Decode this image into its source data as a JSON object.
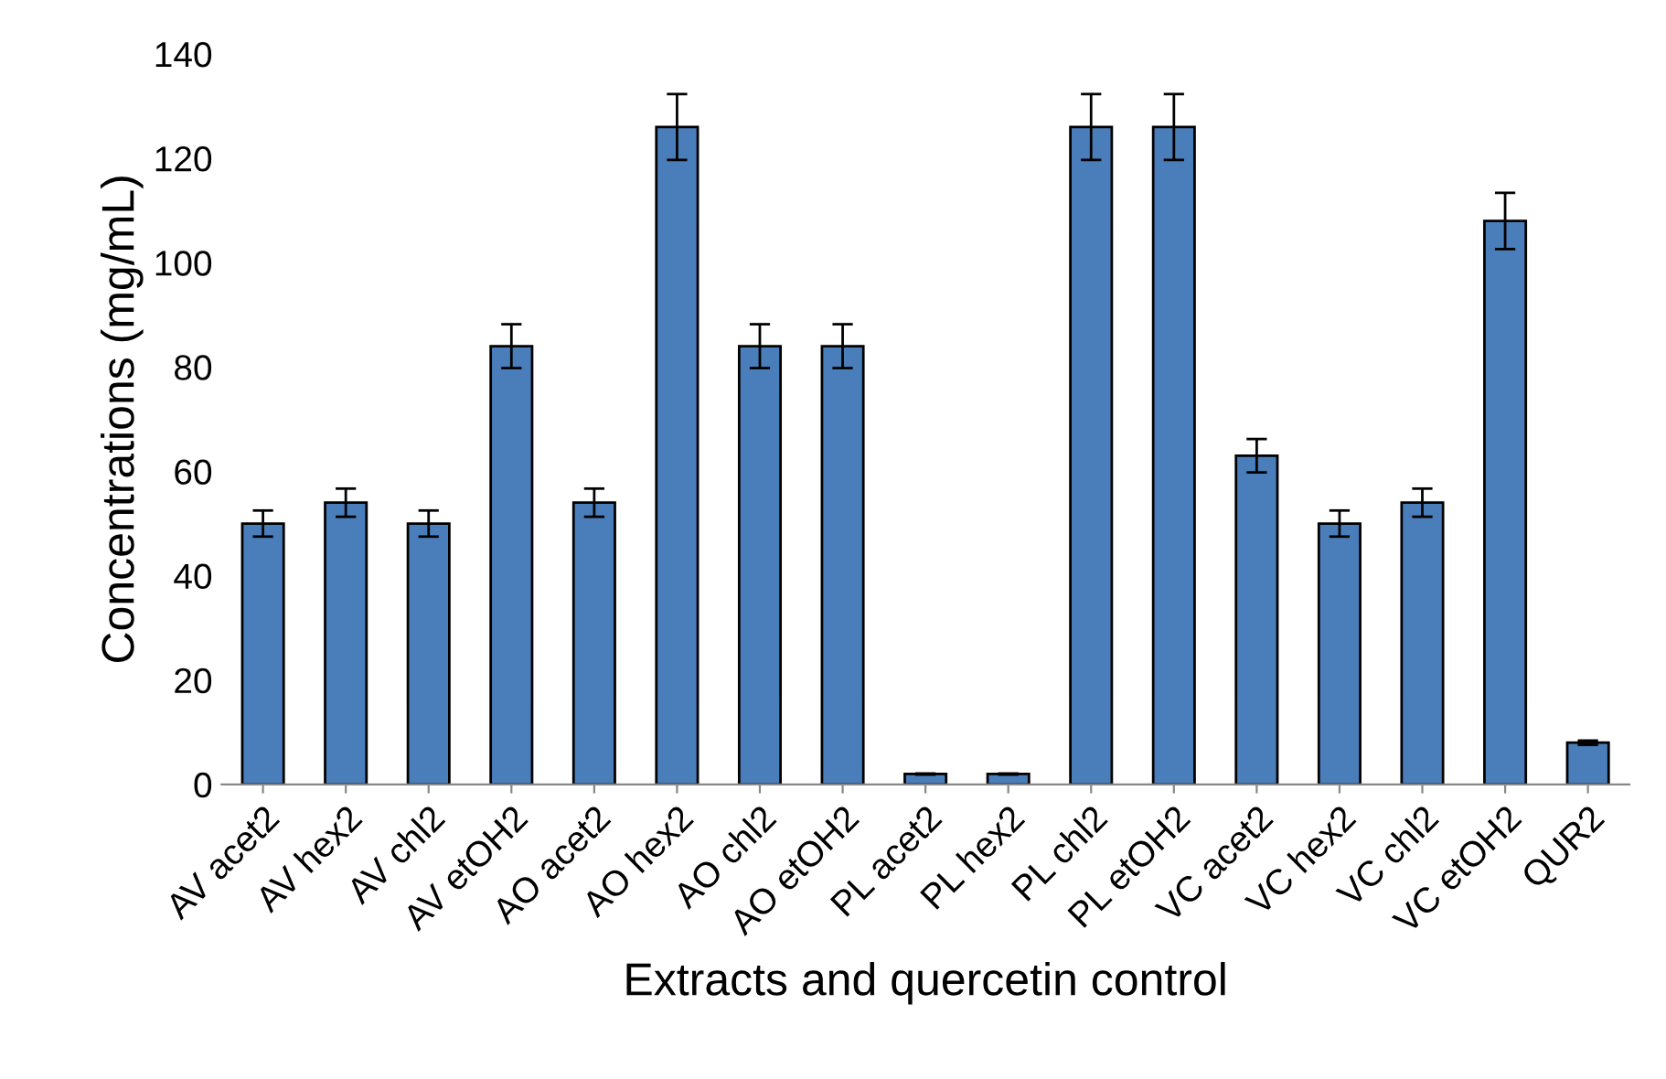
{
  "chart_data": {
    "type": "bar",
    "xlabel": "Extracts and quercetin control",
    "ylabel": "Concentrations (mg/mL)",
    "categories": [
      "AV acet2",
      "AV hex2",
      "AV chl2",
      "AV etOH2",
      "AO acet2",
      "AO hex2",
      "AO chl2",
      "AO etOH2",
      "PL acet2",
      "PL hex2",
      "PL chl2",
      "PL etOH2",
      "VC acet2",
      "VC hex2",
      "VC chl2",
      "VC etOH2",
      "QUR2"
    ],
    "values": [
      50,
      54,
      50,
      84,
      54,
      126,
      84,
      84,
      2,
      2,
      126,
      126,
      63,
      50,
      54,
      108,
      8
    ],
    "errors": [
      2.5,
      2.7,
      2.5,
      4.2,
      2.7,
      6.3,
      4.2,
      4.2,
      0.1,
      0.1,
      6.3,
      6.3,
      3.2,
      2.5,
      2.7,
      5.4,
      0.4
    ],
    "color": "#4a7ebb",
    "ylim": [
      0,
      140
    ],
    "yticks": [
      0,
      20,
      40,
      60,
      80,
      100,
      120,
      140
    ],
    "grid": false,
    "legend": false
  }
}
